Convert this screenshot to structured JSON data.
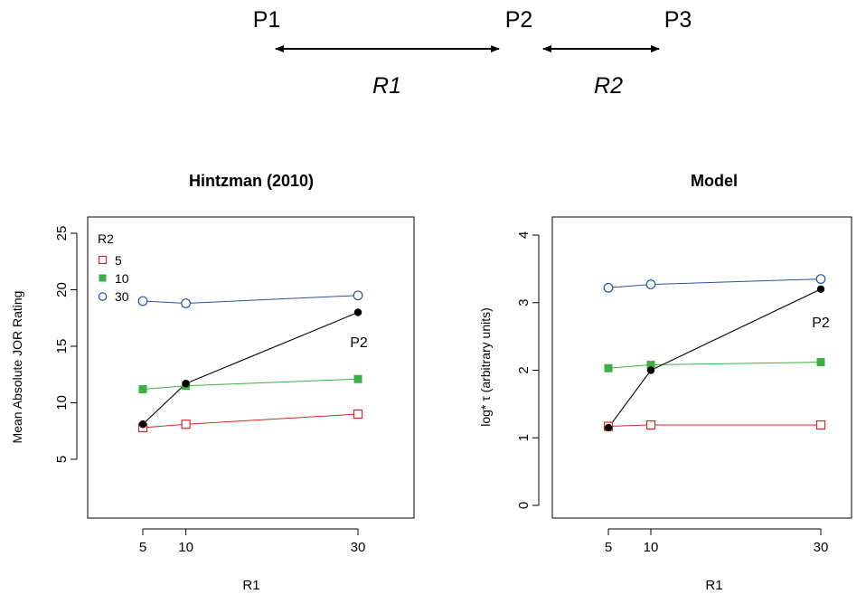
{
  "schematic": {
    "points": [
      "P1",
      "P2",
      "P3"
    ],
    "intervals": [
      "R1",
      "R2"
    ]
  },
  "colors": {
    "series_5": "#d62728",
    "series_10": "#3cb043",
    "series_30": "#2c4f9e",
    "p2_line": "#000000"
  },
  "chart_data": [
    {
      "type": "line",
      "title": "Hintzman (2010)",
      "xlabel": "R1",
      "ylabel": "Mean Absolute JOR Rating",
      "xlim": [
        0,
        40
      ],
      "ylim": [
        0,
        26
      ],
      "xticks": [
        5,
        10,
        30
      ],
      "yticks": [
        5,
        10,
        15,
        20,
        25
      ],
      "legend": {
        "title": "R2",
        "position": "top-left"
      },
      "x": [
        5,
        10,
        30
      ],
      "series": [
        {
          "name": "5",
          "marker": "open-square",
          "values": [
            7.8,
            8.1,
            9.0
          ]
        },
        {
          "name": "10",
          "marker": "filled-square",
          "values": [
            11.2,
            11.5,
            12.1
          ]
        },
        {
          "name": "30",
          "marker": "open-circle",
          "values": [
            19.0,
            18.8,
            19.5
          ]
        }
      ],
      "p2_series": {
        "marker": "filled-circle",
        "values": [
          8.1,
          11.7,
          18.0
        ]
      },
      "annotation": "P2"
    },
    {
      "type": "line",
      "title": "Model",
      "xlabel": "R1",
      "ylabel": "log* τ (arbitrary units)",
      "xlim": [
        0,
        40
      ],
      "ylim": [
        0,
        4.2
      ],
      "xticks": [
        5,
        10,
        30
      ],
      "yticks": [
        0,
        1,
        2,
        3,
        4
      ],
      "x": [
        5,
        10,
        30
      ],
      "series": [
        {
          "series_key": "5",
          "marker": "open-square",
          "values": [
            1.17,
            1.19,
            1.19
          ]
        },
        {
          "series_key": "10",
          "marker": "filled-square",
          "values": [
            2.03,
            2.08,
            2.12
          ]
        },
        {
          "series_key": "30",
          "marker": "open-circle",
          "values": [
            3.22,
            3.27,
            3.35
          ]
        }
      ],
      "p2_series": {
        "marker": "filled-circle",
        "values": [
          1.15,
          2.0,
          3.2
        ]
      },
      "annotation": "P2"
    }
  ]
}
